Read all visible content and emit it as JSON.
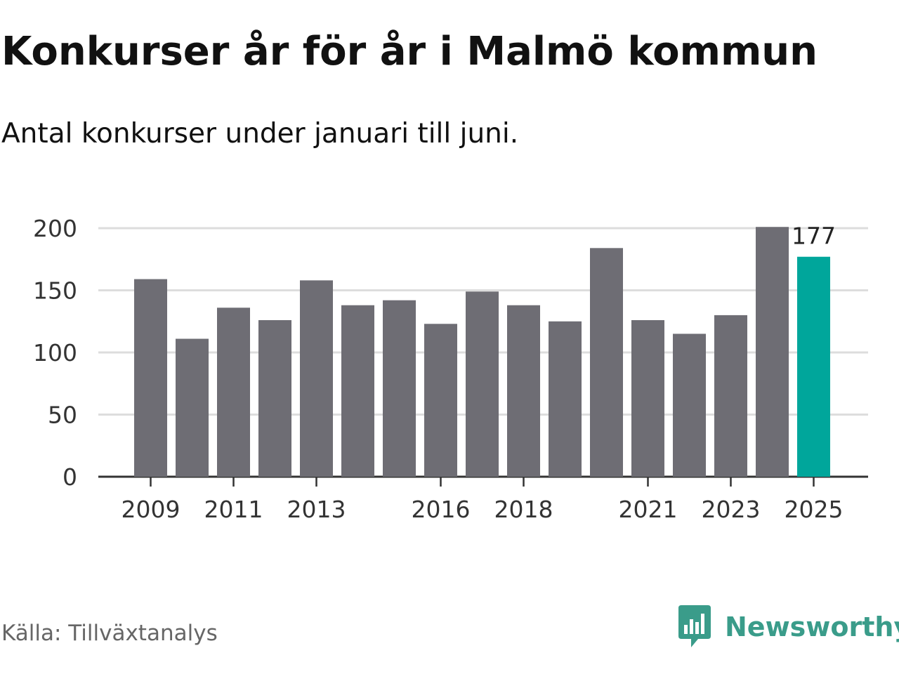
{
  "title": "Konkurser år för år i Malmö kommun",
  "subtitle": "Antal konkurser under januari till juni.",
  "source": "Källa: Tillväxtanalys",
  "brand": {
    "name": "Newsworthy",
    "icon": "newsworthy-logo-icon",
    "color": "#3a9c8a"
  },
  "colors": {
    "bar": "#6e6d74",
    "highlight": "#00a69b",
    "grid": "#dddddd",
    "axis": "#333333"
  },
  "chart_data": {
    "type": "bar",
    "categories": [
      "2009",
      "2010",
      "2011",
      "2012",
      "2013",
      "2014",
      "2015",
      "2016",
      "2017",
      "2018",
      "2019",
      "2020",
      "2021",
      "2022",
      "2023",
      "2024",
      "2025"
    ],
    "values": [
      159,
      111,
      136,
      126,
      158,
      138,
      142,
      123,
      149,
      138,
      125,
      184,
      126,
      115,
      130,
      201,
      177
    ],
    "x_tick_labels": [
      "2009",
      "2011",
      "2013",
      "2016",
      "2018",
      "2021",
      "2023",
      "2025"
    ],
    "y_ticks": [
      "0",
      "50",
      "100",
      "150",
      "200"
    ],
    "ylim": [
      0,
      200
    ],
    "highlight_index": 16,
    "highlight_label": "177",
    "grid": true,
    "title": "Konkurser år för år i Malmö kommun",
    "xlabel": "",
    "ylabel": ""
  }
}
